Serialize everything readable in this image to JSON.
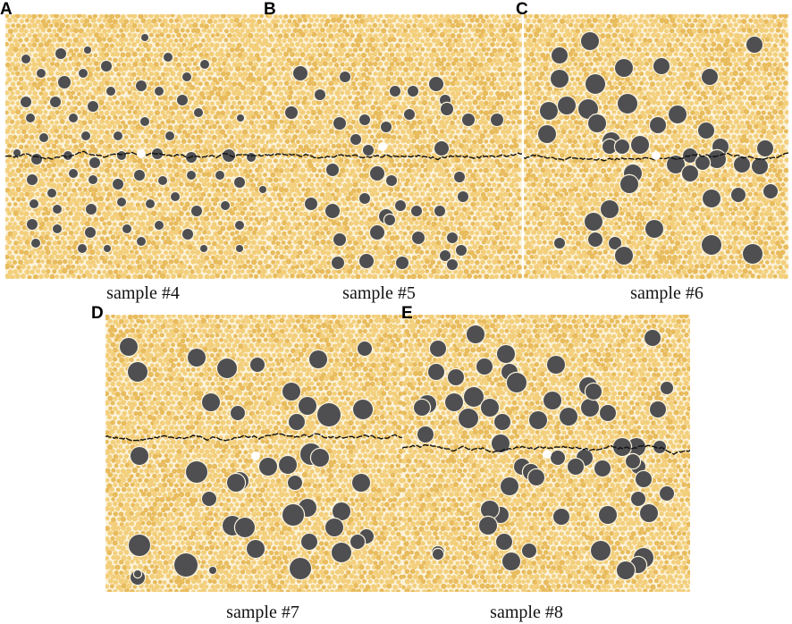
{
  "figure": {
    "panels": [
      {
        "letter": "A",
        "caption": "sample #4"
      },
      {
        "letter": "B",
        "caption": "sample #5"
      },
      {
        "letter": "C",
        "caption": "sample #6"
      },
      {
        "letter": "D",
        "caption": "sample #7"
      },
      {
        "letter": "E",
        "caption": "sample #8"
      }
    ],
    "colors": {
      "matrix": "#f3cf7c",
      "matrix_grain": "#e8bb5c",
      "matrix_gap": "#fbf3dc",
      "aggregate": "#4f4f51",
      "crack": "#111111",
      "defect": "#ffffff"
    },
    "legend_semantics": {
      "matrix": "light yellow particle background",
      "aggregate": "dark grey circular inclusions",
      "crack": "black jagged horizontal line"
    }
  }
}
